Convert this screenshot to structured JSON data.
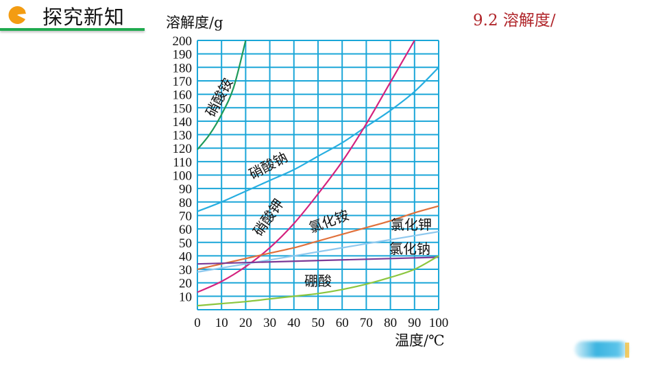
{
  "header": {
    "title": "探究新知",
    "section": "9.2 溶解度/"
  },
  "colors": {
    "grid": "#1aa6d8",
    "accent": "#f39c12",
    "header_line": "#1faa4f",
    "section": "#b0252a"
  },
  "chart_data": {
    "type": "line",
    "ylabel": "溶解度/g",
    "xlabel": "温度/℃",
    "xlim": [
      0,
      100
    ],
    "ylim": [
      0,
      200
    ],
    "grid": true,
    "xticks": [
      0,
      10,
      20,
      30,
      40,
      50,
      60,
      70,
      80,
      90,
      100
    ],
    "yticks": [
      10,
      20,
      30,
      40,
      50,
      60,
      70,
      80,
      90,
      100,
      110,
      120,
      130,
      140,
      150,
      160,
      170,
      180,
      190,
      200
    ],
    "series": [
      {
        "name": "硝酸铵",
        "color": "#1e9a5a",
        "x": [
          0,
          5,
          10,
          15,
          20
        ],
        "values": [
          119,
          130,
          145,
          165,
          200
        ]
      },
      {
        "name": "硝酸钠",
        "color": "#27aee0",
        "x": [
          0,
          10,
          20,
          30,
          40,
          50,
          60,
          70,
          80,
          90,
          100
        ],
        "values": [
          73,
          80,
          88,
          96,
          104,
          114,
          124,
          136,
          148,
          162,
          180
        ]
      },
      {
        "name": "硝酸钾",
        "color": "#d4227e",
        "x": [
          0,
          10,
          20,
          30,
          40,
          50,
          60,
          70,
          80,
          90
        ],
        "values": [
          13,
          21,
          32,
          46,
          64,
          86,
          110,
          138,
          169,
          200
        ]
      },
      {
        "name": "氯化铵",
        "color": "#e0703a",
        "x": [
          0,
          10,
          20,
          30,
          40,
          50,
          60,
          70,
          80,
          90,
          100
        ],
        "values": [
          30,
          34,
          38,
          42,
          46,
          51,
          56,
          61,
          66,
          72,
          77
        ]
      },
      {
        "name": "氯化钾",
        "color": "#8ec8ee",
        "x": [
          0,
          10,
          20,
          30,
          40,
          50,
          60,
          70,
          80,
          90,
          100
        ],
        "values": [
          28,
          31,
          34,
          37,
          40,
          43,
          46,
          49,
          52,
          55,
          58
        ]
      },
      {
        "name": "氯化钠",
        "color": "#7b3a96",
        "x": [
          0,
          100
        ],
        "values": [
          34,
          39
        ]
      },
      {
        "name": "硼酸",
        "color": "#8cc63e",
        "x": [
          0,
          10,
          20,
          30,
          40,
          50,
          60,
          70,
          80,
          90,
          100
        ],
        "values": [
          3,
          4.5,
          6,
          8,
          10,
          12,
          15,
          19,
          24,
          30,
          40
        ]
      }
    ]
  }
}
